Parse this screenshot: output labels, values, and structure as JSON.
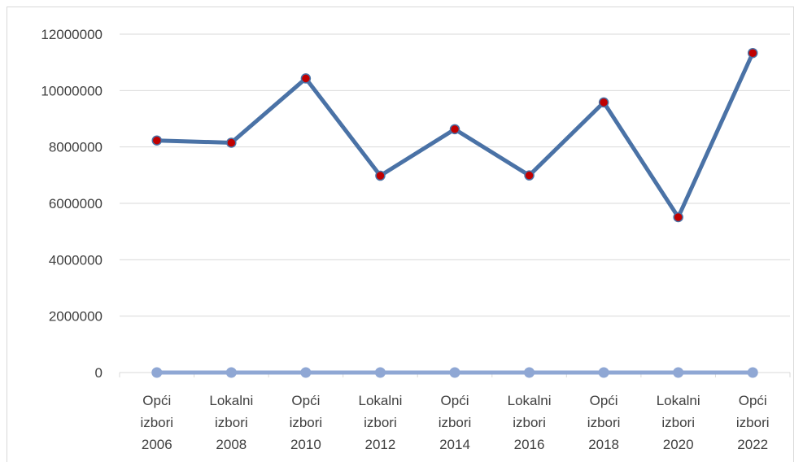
{
  "chart_data": {
    "type": "line",
    "title": "",
    "xlabel": "",
    "ylabel": "",
    "categories": [
      [
        "Opći",
        "izbori",
        "2006"
      ],
      [
        "Lokalni",
        "izbori",
        "2008"
      ],
      [
        "Opći",
        "izbori",
        "2010"
      ],
      [
        "Lokalni",
        "izbori",
        "2012"
      ],
      [
        "Opći",
        "izbori",
        "2014"
      ],
      [
        "Lokalni",
        "izbori",
        "2016"
      ],
      [
        "Opći",
        "izbori",
        "2018"
      ],
      [
        "Lokalni",
        "izbori",
        "2020"
      ],
      [
        "Opći",
        "izbori",
        "2022"
      ]
    ],
    "ylim": [
      0,
      12000000
    ],
    "yticks": [
      "0",
      "2000000",
      "4000000",
      "6000000",
      "8000000",
      "10000000",
      "12000000"
    ],
    "grid": true,
    "legend": "none",
    "series": [
      {
        "values": [
          8230000,
          8150000,
          10430000,
          6980000,
          8630000,
          6990000,
          9580000,
          5510000,
          11330000
        ],
        "line_color": "#4a72a6",
        "marker_color": "#c00000"
      },
      {
        "values": [
          0,
          0,
          0,
          0,
          0,
          0,
          0,
          0,
          0
        ],
        "line_color": "#8fa7d4",
        "marker_color": "#8fa7d4"
      }
    ]
  }
}
